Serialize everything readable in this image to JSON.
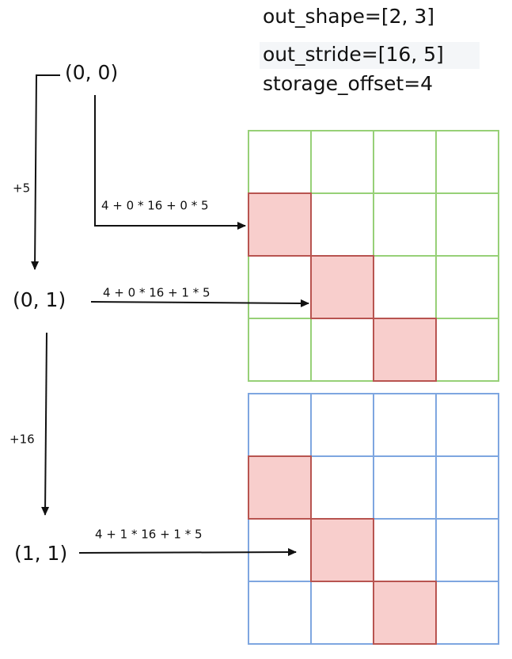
{
  "header": {
    "lines": [
      "out_shape=[2, 3]",
      "out_stride=[16, 5]",
      "storage_offset=4"
    ]
  },
  "nodes": [
    {
      "label": "(0, 0)"
    },
    {
      "label": "(0, 1)"
    },
    {
      "label": "(1, 1)"
    }
  ],
  "steps": [
    {
      "label": "+5"
    },
    {
      "label": "+16"
    }
  ],
  "edges": [
    {
      "label": "4 + 0 * 16 + 0 * 5"
    },
    {
      "label": "4 + 0 * 16 + 1 * 5"
    },
    {
      "label": "4 + 1 * 16 + 1 * 5"
    }
  ]
}
